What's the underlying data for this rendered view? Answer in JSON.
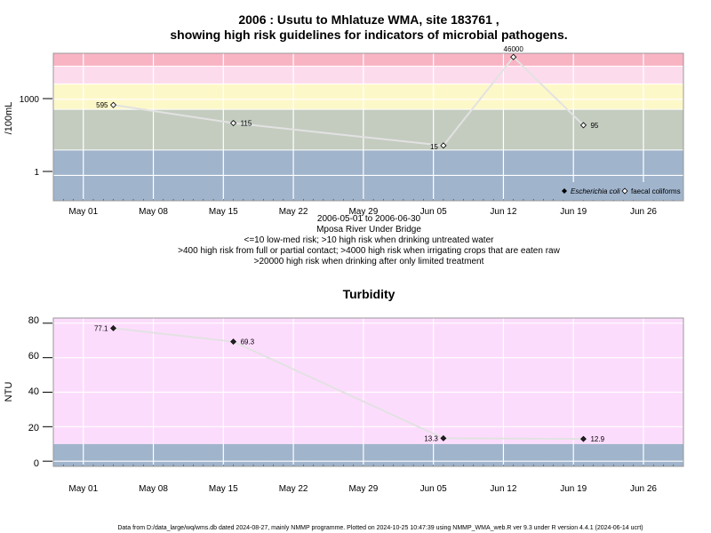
{
  "top": {
    "title_line1": "2006 : Usutu to Mhlatuze WMA, site 183761 ,",
    "title_line2": "showing high risk guidelines for indicators of microbial pathogens.",
    "ylabel": "/100mL",
    "x_ticks": [
      "May 01",
      "May 08",
      "May 15",
      "May 22",
      "May 29",
      "Jun 05",
      "Jun 12",
      "Jun 19",
      "Jun 26"
    ],
    "y_ticks": [
      "1000",
      "1"
    ],
    "legend": {
      "ecoli": "Escherichia coli",
      "faecal": "faecal coliforms"
    },
    "caption": [
      "2006-05-01 to 2006-06-30",
      "Mposa River Under Bridge",
      "<=10 low-med risk; >10 high risk when drinking untreated water",
      ">400 high risk from full or partial contact; >4000 high risk when irrigating crops that are eaten raw",
      ">20000 high risk when drinking after only limited treatment"
    ]
  },
  "bottom": {
    "title": "Turbidity",
    "ylabel": "NTU",
    "x_ticks": [
      "May 01",
      "May 08",
      "May 15",
      "May 22",
      "May 29",
      "Jun 05",
      "Jun 12",
      "Jun 19",
      "Jun 26"
    ],
    "y_ticks": [
      "80",
      "60",
      "40",
      "20",
      "0"
    ]
  },
  "footer": "Data from D:/data_large/wq/wms.db dated 2024-08-27, mainly NMMP programme. Plotted on 2024-10-25 10:47:39 using NMMP_WMA_web.R ver 9.3 under R version 4.4.1 (2024-06-14 ucrt)",
  "colors": {
    "blue_band": "#a0b4cc",
    "green_band": "#c4ccc0",
    "yellow_band": "#fdf8c8",
    "pink_band": "#fcdcec",
    "red_band": "#f9b4c4",
    "turbidity_bg": "#fcdcfc",
    "line": "#e2e2e2"
  },
  "chart_data": [
    {
      "type": "line",
      "title": "2006 : Usutu to Mhlatuze WMA, site 183761 , showing high risk guidelines for indicators of microbial pathogens.",
      "ylabel": "/100mL",
      "y_scale": "log",
      "x_range": [
        "2006-04-28",
        "2006-06-30"
      ],
      "grid": true,
      "legend_position": "bottom-right",
      "series": [
        {
          "name": "faecal coliforms",
          "marker": "open-diamond",
          "points": [
            {
              "x": "2006-05-04",
              "y": 595,
              "label": "595"
            },
            {
              "x": "2006-05-16",
              "y": 115,
              "label": "115"
            },
            {
              "x": "2006-06-06",
              "y": 15,
              "label": "15"
            },
            {
              "x": "2006-06-13",
              "y": 46000,
              "label": "46000"
            },
            {
              "x": "2006-06-20",
              "y": 95,
              "label": "95"
            }
          ]
        }
      ],
      "risk_bands": [
        {
          "from": 0,
          "to": 10,
          "color": "blue"
        },
        {
          "from": 10,
          "to": 400,
          "color": "green"
        },
        {
          "from": 400,
          "to": 4000,
          "color": "yellow"
        },
        {
          "from": 4000,
          "to": 20000,
          "color": "pink"
        },
        {
          "from": 20000,
          "to": 100000,
          "color": "red"
        }
      ]
    },
    {
      "type": "line",
      "title": "Turbidity",
      "ylabel": "NTU",
      "ylim": [
        -3,
        83
      ],
      "x_range": [
        "2006-04-28",
        "2006-06-30"
      ],
      "grid": true,
      "series": [
        {
          "name": "",
          "marker": "filled-diamond",
          "points": [
            {
              "x": "2006-05-04",
              "y": 77.1,
              "label": "77.1"
            },
            {
              "x": "2006-05-16",
              "y": 69.3,
              "label": "69.3"
            },
            {
              "x": "2006-06-06",
              "y": 13.3,
              "label": "13.3"
            },
            {
              "x": "2006-06-20",
              "y": 12.9,
              "label": "12.9"
            }
          ]
        }
      ],
      "risk_bands": [
        {
          "from": -3,
          "to": 10,
          "color": "blue"
        },
        {
          "from": 10,
          "to": 83,
          "color": "pink"
        }
      ]
    }
  ]
}
